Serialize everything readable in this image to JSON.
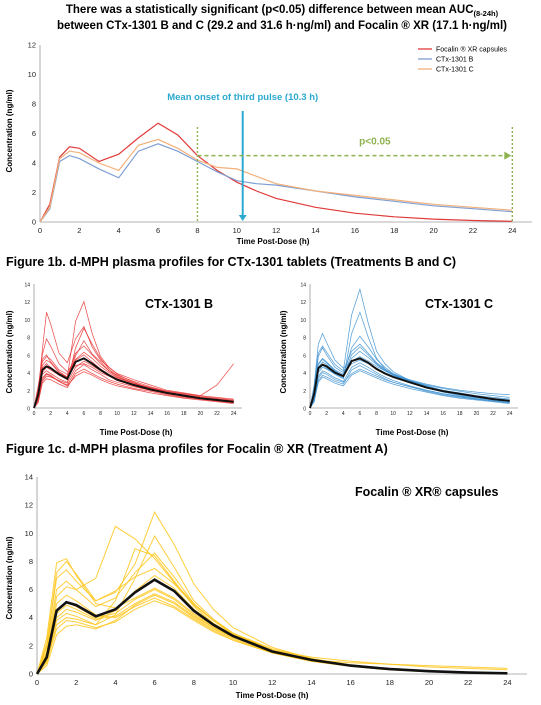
{
  "chart_data": [
    {
      "id": "fig1a",
      "type": "line",
      "title_line1": "There was a statistically significant (p<0.05) difference between mean AUC",
      "title_sub": "(8-24h)",
      "title_line2": "between CTx-1301 B and C (29.2 and 31.6 h·ng/ml) and Focalin ® XR (17.1 h·ng/ml)",
      "xlabel": "Time Post-Dose (h)",
      "ylabel": "Concentration (ng/ml)",
      "xlim": [
        0,
        25
      ],
      "ylim": [
        0,
        12
      ],
      "xticks": [
        0,
        2,
        4,
        6,
        8,
        10,
        12,
        14,
        16,
        18,
        20,
        22,
        24
      ],
      "yticks": [
        0,
        2,
        4,
        6,
        8,
        10,
        12
      ],
      "legend_position": "top-right",
      "series": [
        {
          "name": "Focalin ® XR capsules",
          "color": "#e03a3a",
          "x": [
            0,
            0.5,
            1,
            1.5,
            2,
            3,
            4,
            5,
            6,
            7,
            8,
            9,
            10,
            11,
            12,
            14,
            16,
            18,
            20,
            22,
            24
          ],
          "y": [
            0,
            1.2,
            4.4,
            5.1,
            5.0,
            4.1,
            4.6,
            5.7,
            6.7,
            5.9,
            4.5,
            3.5,
            2.7,
            2.1,
            1.6,
            1.0,
            0.6,
            0.35,
            0.2,
            0.1,
            0.05
          ]
        },
        {
          "name": "CTx-1301 B",
          "color": "#7f9fd3",
          "x": [
            0,
            0.5,
            1,
            1.5,
            2,
            3,
            4,
            5,
            6,
            7,
            8,
            9,
            10,
            11,
            12,
            14,
            16,
            18,
            20,
            22,
            24
          ],
          "y": [
            0,
            0.9,
            4.1,
            4.5,
            4.3,
            3.6,
            3.0,
            4.8,
            5.3,
            4.8,
            4.1,
            3.4,
            2.8,
            2.6,
            2.5,
            2.1,
            1.7,
            1.4,
            1.1,
            0.9,
            0.7
          ]
        },
        {
          "name": "CTx-1301 C",
          "color": "#f2b07a",
          "x": [
            0,
            0.5,
            1,
            1.5,
            2,
            3,
            4,
            5,
            6,
            7,
            8,
            9,
            10,
            11,
            12,
            14,
            16,
            18,
            20,
            22,
            24
          ],
          "y": [
            0,
            1.0,
            4.3,
            4.8,
            4.7,
            4.0,
            3.5,
            5.2,
            5.6,
            5.0,
            4.2,
            3.7,
            3.6,
            3.1,
            2.6,
            2.1,
            1.8,
            1.5,
            1.2,
            1.0,
            0.8
          ]
        }
      ],
      "annotations": [
        {
          "text": "Mean onset of third pulse (10.3 h)",
          "color": "#2ba9cf",
          "arrow_x": 10.3,
          "arrow_y": 0
        },
        {
          "text": "p<0.05",
          "color": "#8db24f",
          "from_x": 8,
          "to_x": 24,
          "y": 4.5
        }
      ]
    },
    {
      "id": "fig1b_b",
      "type": "line",
      "heading": "Figure 1b. d-MPH plasma profiles for CTx-1301 tablets (Treatments B and C)",
      "label": "CTx-1301 B",
      "xlabel": "Time Post-Dose (h)",
      "ylabel": "Concentration (ng/ml)",
      "xlim": [
        0,
        25
      ],
      "ylim": [
        0,
        14
      ],
      "xticks": [
        0,
        2,
        4,
        6,
        8,
        10,
        12,
        14,
        16,
        18,
        20,
        22,
        24
      ],
      "yticks": [
        0,
        2,
        4,
        6,
        8,
        10,
        12,
        14
      ],
      "individual_color": "#e83030",
      "mean_color": "#111111",
      "x": [
        0,
        0.5,
        1,
        1.5,
        2,
        3,
        4,
        5,
        6,
        7,
        8,
        9,
        10,
        12,
        14,
        16,
        18,
        20,
        22,
        24
      ],
      "mean": [
        0,
        1.5,
        4.3,
        4.7,
        4.5,
        3.8,
        3.3,
        5.2,
        5.6,
        5.0,
        4.3,
        3.7,
        3.2,
        2.6,
        2.1,
        1.7,
        1.4,
        1.1,
        0.9,
        0.7
      ],
      "subjects": [
        [
          0,
          1.8,
          6.5,
          10.8,
          9.5,
          6.2,
          5.1,
          7.8,
          9.2,
          6.9,
          5.4,
          4.6,
          3.9,
          3.2,
          2.6,
          2.0,
          1.7,
          1.4,
          1.2,
          1.0
        ],
        [
          0,
          2.2,
          5.5,
          6.0,
          5.2,
          4.1,
          3.5,
          9.8,
          12.0,
          8.4,
          5.8,
          4.6,
          3.8,
          2.9,
          2.2,
          1.7,
          1.3,
          1.0,
          0.8,
          0.6
        ],
        [
          0,
          1.0,
          4.0,
          4.6,
          4.3,
          3.7,
          3.2,
          5.9,
          7.6,
          6.1,
          5.2,
          4.2,
          3.7,
          3.0,
          2.4,
          1.9,
          1.6,
          1.3,
          1.1,
          0.9
        ],
        [
          0,
          1.5,
          3.4,
          3.9,
          3.7,
          3.0,
          2.6,
          4.2,
          4.9,
          4.3,
          3.8,
          3.2,
          2.9,
          2.4,
          2.0,
          1.6,
          1.3,
          1.1,
          0.9,
          0.7
        ],
        [
          0,
          0.6,
          2.8,
          3.3,
          3.2,
          2.7,
          2.3,
          3.9,
          4.4,
          3.9,
          3.4,
          3.0,
          2.7,
          2.2,
          1.9,
          1.5,
          1.2,
          1.0,
          0.8,
          0.6
        ],
        [
          0,
          2.5,
          5.2,
          5.8,
          5.5,
          4.3,
          3.8,
          4.8,
          5.0,
          4.6,
          4.0,
          3.6,
          3.2,
          2.6,
          2.1,
          1.7,
          1.4,
          1.2,
          1.0,
          0.8
        ],
        [
          0,
          1.2,
          4.8,
          5.4,
          5.1,
          4.0,
          3.4,
          5.5,
          6.3,
          5.6,
          4.7,
          4.0,
          3.4,
          2.8,
          2.3,
          1.9,
          1.6,
          1.4,
          2.6,
          5.0
        ],
        [
          0,
          0.8,
          3.0,
          3.6,
          3.5,
          3.1,
          2.8,
          6.8,
          9.0,
          7.2,
          5.6,
          4.4,
          3.6,
          2.8,
          2.2,
          1.7,
          1.4,
          1.1,
          0.9,
          0.7
        ],
        [
          0,
          2.0,
          6.0,
          7.8,
          7.0,
          5.0,
          4.1,
          5.4,
          6.0,
          5.2,
          4.4,
          3.8,
          3.3,
          2.7,
          2.2,
          1.8,
          1.5,
          1.2,
          1.0,
          0.8
        ],
        [
          0,
          1.4,
          3.8,
          4.2,
          3.9,
          3.3,
          2.9,
          4.6,
          5.3,
          4.8,
          4.2,
          3.6,
          3.1,
          2.5,
          2.0,
          1.6,
          1.3,
          1.0,
          0.8,
          0.6
        ],
        [
          0,
          1.7,
          4.5,
          5.0,
          4.6,
          3.9,
          3.5,
          6.2,
          7.0,
          6.0,
          5.0,
          4.2,
          3.5,
          2.8,
          2.3,
          1.8,
          1.5,
          1.2,
          1.0,
          0.8
        ],
        [
          0,
          0.9,
          3.2,
          3.8,
          3.6,
          3.0,
          2.5,
          3.6,
          4.1,
          3.7,
          3.2,
          2.8,
          2.5,
          2.1,
          1.7,
          1.4,
          1.1,
          0.9,
          0.7,
          0.5
        ]
      ]
    },
    {
      "id": "fig1b_c",
      "type": "line",
      "label": "CTx-1301 C",
      "xlabel": "Time Post-Dose (h)",
      "ylabel": "Concentration (ng/ml)",
      "xlim": [
        0,
        25
      ],
      "ylim": [
        0,
        14
      ],
      "xticks": [
        0,
        2,
        4,
        6,
        8,
        10,
        12,
        14,
        16,
        18,
        20,
        22,
        24
      ],
      "yticks": [
        0,
        2,
        4,
        6,
        8,
        10,
        12,
        14
      ],
      "individual_color": "#3a8fd0",
      "mean_color": "#111111",
      "x": [
        0,
        0.5,
        1,
        1.5,
        2,
        3,
        4,
        5,
        6,
        7,
        8,
        9,
        10,
        12,
        14,
        16,
        18,
        20,
        22,
        24
      ],
      "mean": [
        0,
        1.6,
        4.5,
        4.9,
        4.7,
        4.0,
        3.6,
        5.3,
        5.6,
        5.1,
        4.4,
        3.9,
        3.5,
        2.9,
        2.3,
        1.9,
        1.6,
        1.3,
        1.0,
        0.8
      ],
      "subjects": [
        [
          0,
          2.4,
          6.2,
          7.0,
          6.3,
          4.9,
          4.2,
          10.5,
          13.4,
          9.6,
          6.4,
          5.0,
          4.1,
          3.1,
          2.4,
          1.9,
          1.5,
          1.2,
          1.0,
          0.8
        ],
        [
          0,
          1.1,
          4.0,
          4.6,
          4.4,
          3.8,
          3.3,
          8.4,
          10.8,
          8.0,
          5.6,
          4.4,
          3.7,
          2.9,
          2.3,
          1.8,
          1.4,
          1.1,
          0.9,
          0.7
        ],
        [
          0,
          1.8,
          5.0,
          5.6,
          5.2,
          4.3,
          3.8,
          5.0,
          5.4,
          5.0,
          4.5,
          4.0,
          3.6,
          3.0,
          2.5,
          2.0,
          1.7,
          1.4,
          1.2,
          1.0
        ],
        [
          0,
          0.7,
          3.1,
          3.7,
          3.5,
          3.0,
          2.7,
          4.3,
          4.8,
          4.3,
          3.8,
          3.3,
          2.9,
          2.4,
          1.9,
          1.5,
          1.2,
          1.0,
          0.8,
          0.6
        ],
        [
          0,
          2.0,
          5.8,
          6.8,
          6.0,
          4.6,
          4.0,
          6.4,
          7.2,
          6.2,
          5.1,
          4.4,
          3.8,
          3.0,
          2.4,
          1.9,
          1.6,
          1.3,
          1.0,
          0.8
        ],
        [
          0,
          1.3,
          4.2,
          4.8,
          4.5,
          3.9,
          3.4,
          5.6,
          6.4,
          5.7,
          4.9,
          4.2,
          3.7,
          3.1,
          2.6,
          2.2,
          1.9,
          1.6,
          1.4,
          1.2
        ],
        [
          0,
          0.9,
          3.4,
          4.0,
          3.8,
          3.2,
          2.9,
          3.9,
          4.4,
          4.0,
          3.6,
          3.2,
          2.9,
          2.4,
          2.0,
          1.6,
          1.3,
          1.0,
          0.8,
          0.6
        ],
        [
          0,
          1.5,
          4.6,
          5.2,
          4.9,
          4.1,
          3.7,
          6.8,
          8.1,
          6.9,
          5.5,
          4.6,
          3.9,
          3.1,
          2.5,
          2.0,
          1.6,
          1.3,
          1.1,
          0.9
        ],
        [
          0,
          2.6,
          7.2,
          8.4,
          7.4,
          5.4,
          4.5,
          5.3,
          5.8,
          5.3,
          4.7,
          4.2,
          3.8,
          3.2,
          2.7,
          2.3,
          2.0,
          1.8,
          1.6,
          1.5
        ],
        [
          0,
          1.0,
          3.6,
          4.2,
          4.0,
          3.4,
          3.0,
          4.6,
          5.1,
          4.6,
          4.0,
          3.5,
          3.1,
          2.5,
          2.0,
          1.6,
          1.3,
          1.0,
          0.8,
          0.6
        ],
        [
          0,
          1.7,
          4.9,
          5.5,
          5.1,
          4.2,
          3.6,
          6.0,
          6.9,
          6.0,
          5.0,
          4.3,
          3.7,
          3.0,
          2.4,
          1.9,
          1.5,
          1.2,
          1.0,
          0.8
        ],
        [
          0,
          0.8,
          2.9,
          3.5,
          3.3,
          2.8,
          2.5,
          3.7,
          4.2,
          3.8,
          3.4,
          3.0,
          2.7,
          2.2,
          1.8,
          1.4,
          1.1,
          0.9,
          0.7,
          0.5
        ]
      ]
    },
    {
      "id": "fig1c",
      "type": "line",
      "heading": "Figure 1c. d-MPH plasma profiles for Focalin ® XR (Treatment A)",
      "label": "Focalin ® XR® capsules",
      "xlabel": "Time Post-Dose (h)",
      "ylabel": "Concentration (ng/ml)",
      "xlim": [
        0,
        25
      ],
      "ylim": [
        0,
        14
      ],
      "xticks": [
        0,
        2,
        4,
        6,
        8,
        10,
        12,
        14,
        16,
        18,
        20,
        22,
        24
      ],
      "yticks": [
        0,
        2,
        4,
        6,
        8,
        10,
        12,
        14
      ],
      "individual_color": "#ffc51a",
      "mean_color": "#111111",
      "x": [
        0,
        0.5,
        1,
        1.5,
        2,
        3,
        4,
        5,
        6,
        7,
        8,
        9,
        10,
        12,
        14,
        16,
        18,
        20,
        22,
        24
      ],
      "mean": [
        0,
        1.2,
        4.5,
        5.1,
        4.9,
        4.1,
        4.6,
        5.8,
        6.7,
        5.9,
        4.5,
        3.5,
        2.7,
        1.6,
        1.0,
        0.6,
        0.35,
        0.2,
        0.1,
        0.05
      ],
      "subjects": [
        [
          0,
          2.0,
          7.2,
          8.0,
          7.1,
          5.2,
          5.8,
          7.8,
          11.5,
          9.2,
          6.4,
          4.6,
          3.3,
          1.9,
          1.1,
          0.6,
          0.3,
          0.15,
          0.1,
          0.05
        ],
        [
          0,
          1.5,
          5.5,
          6.2,
          6.0,
          6.8,
          10.5,
          9.6,
          8.2,
          6.5,
          5.0,
          3.8,
          2.9,
          1.7,
          1.0,
          0.6,
          0.35,
          0.2,
          0.1,
          0.05
        ],
        [
          0,
          0.8,
          3.5,
          4.0,
          3.9,
          3.5,
          4.2,
          6.8,
          9.8,
          7.6,
          5.2,
          3.9,
          2.9,
          1.7,
          1.0,
          0.6,
          0.35,
          0.2,
          0.1,
          0.05
        ],
        [
          0,
          2.6,
          7.9,
          8.2,
          7.0,
          5.0,
          4.7,
          5.4,
          6.1,
          5.4,
          4.3,
          3.4,
          2.6,
          1.6,
          1.0,
          0.6,
          0.35,
          0.2,
          0.1,
          0.05
        ],
        [
          0,
          1.1,
          4.0,
          4.6,
          4.4,
          3.8,
          4.5,
          5.9,
          7.0,
          6.1,
          4.6,
          3.6,
          2.8,
          1.6,
          1.0,
          0.6,
          0.35,
          0.2,
          0.1,
          0.05
        ],
        [
          0,
          0.6,
          2.8,
          3.4,
          3.5,
          3.2,
          3.8,
          4.9,
          5.6,
          5.0,
          4.0,
          3.2,
          2.5,
          1.5,
          0.9,
          0.55,
          0.3,
          0.2,
          0.1,
          0.05
        ],
        [
          0,
          1.9,
          6.0,
          6.6,
          6.0,
          4.8,
          5.4,
          7.2,
          8.6,
          6.9,
          5.0,
          3.8,
          2.8,
          1.7,
          1.0,
          0.6,
          0.35,
          0.2,
          0.1,
          0.05
        ],
        [
          0,
          1.3,
          4.6,
          5.1,
          4.8,
          4.0,
          4.3,
          5.3,
          6.0,
          5.3,
          4.2,
          3.3,
          2.6,
          1.6,
          1.0,
          0.8,
          0.7,
          0.6,
          0.5,
          0.4
        ],
        [
          0,
          0.9,
          3.2,
          3.8,
          3.7,
          3.3,
          3.7,
          4.6,
          5.2,
          4.7,
          3.8,
          3.0,
          2.4,
          1.5,
          0.9,
          0.55,
          0.3,
          0.2,
          0.1,
          0.05
        ],
        [
          0,
          2.2,
          6.8,
          7.4,
          6.6,
          5.2,
          5.9,
          6.9,
          7.5,
          6.4,
          4.9,
          3.8,
          2.9,
          1.8,
          1.1,
          0.65,
          0.4,
          0.2,
          0.1,
          0.05
        ],
        [
          0,
          1.6,
          5.0,
          5.6,
          5.2,
          4.2,
          4.0,
          4.8,
          5.4,
          4.8,
          3.9,
          3.1,
          2.4,
          1.5,
          0.9,
          0.55,
          0.3,
          0.2,
          0.1,
          0.05
        ],
        [
          0,
          1.0,
          3.8,
          4.3,
          4.1,
          3.5,
          5.2,
          8.9,
          8.4,
          6.6,
          4.8,
          3.6,
          2.7,
          1.6,
          1.0,
          0.6,
          0.35,
          0.2,
          0.1,
          0.05
        ],
        [
          0,
          1.4,
          4.3,
          4.9,
          4.6,
          3.9,
          4.1,
          5.0,
          5.7,
          5.1,
          4.1,
          3.3,
          2.6,
          1.7,
          1.2,
          0.9,
          0.7,
          0.5,
          0.4,
          0.3
        ]
      ]
    }
  ]
}
